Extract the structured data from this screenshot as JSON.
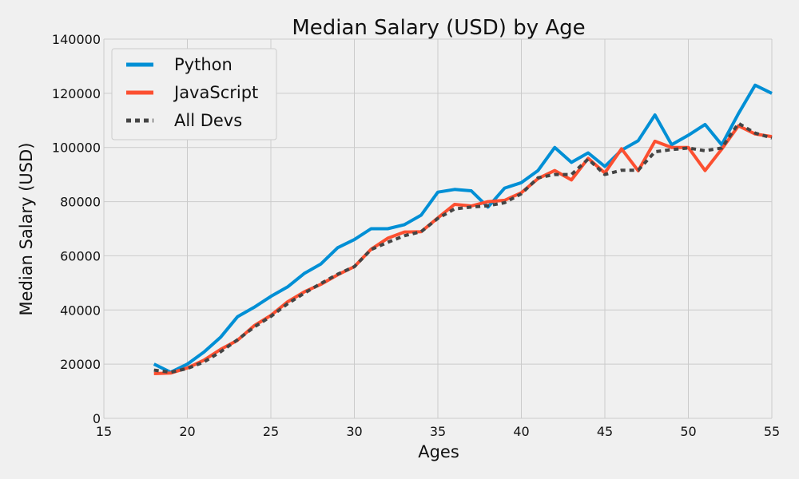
{
  "chart_data": {
    "type": "line",
    "title": "Median Salary (USD) by Age",
    "xlabel": "Ages",
    "ylabel": "Median Salary (USD)",
    "xlim": [
      15,
      55
    ],
    "ylim": [
      0,
      140000
    ],
    "xticks": [
      15,
      20,
      25,
      30,
      35,
      40,
      45,
      50,
      55
    ],
    "yticks": [
      0,
      20000,
      40000,
      60000,
      80000,
      100000,
      120000,
      140000
    ],
    "grid": true,
    "legend_position": "top-left",
    "x": [
      18,
      19,
      20,
      21,
      22,
      23,
      24,
      25,
      26,
      27,
      28,
      29,
      30,
      31,
      32,
      33,
      34,
      35,
      36,
      37,
      38,
      39,
      40,
      41,
      42,
      43,
      44,
      45,
      46,
      47,
      48,
      49,
      50,
      51,
      52,
      53,
      54,
      55
    ],
    "series": [
      {
        "name": "Python",
        "color": "#008fd5",
        "style": "solid",
        "values": [
          20000,
          17000,
          20000,
          24500,
          30000,
          37500,
          41000,
          45000,
          48500,
          53500,
          57000,
          63000,
          66000,
          70000,
          70000,
          71500,
          75000,
          83500,
          84500,
          84000,
          78000,
          85000,
          87000,
          91500,
          100000,
          94500,
          98000,
          93000,
          99000,
          102500,
          112000,
          101000,
          104500,
          108500,
          101000,
          112500,
          123000,
          120000
        ]
      },
      {
        "name": "JavaScript",
        "color": "#fc4f30",
        "style": "solid",
        "values": [
          16500,
          16700,
          18600,
          21500,
          25500,
          28800,
          34200,
          38000,
          43000,
          46700,
          49500,
          53000,
          56000,
          62400,
          66500,
          68800,
          68900,
          74000,
          79000,
          78400,
          80000,
          80500,
          83300,
          88500,
          91500,
          88000,
          96000,
          90600,
          99500,
          91400,
          102300,
          100000,
          100000,
          91500,
          99400,
          108000,
          105000,
          104000
        ]
      },
      {
        "name": "All Devs",
        "color": "#444444",
        "style": "dashed",
        "values": [
          17800,
          17000,
          18400,
          20800,
          24600,
          29000,
          33700,
          37600,
          42300,
          46200,
          49800,
          53200,
          56000,
          62300,
          65000,
          67400,
          68900,
          73800,
          77300,
          78000,
          78500,
          79600,
          82900,
          88800,
          90000,
          90000,
          95700,
          90000,
          91600,
          91600,
          98400,
          99200,
          99800,
          98800,
          99800,
          108900,
          105300,
          103500
        ]
      }
    ]
  }
}
